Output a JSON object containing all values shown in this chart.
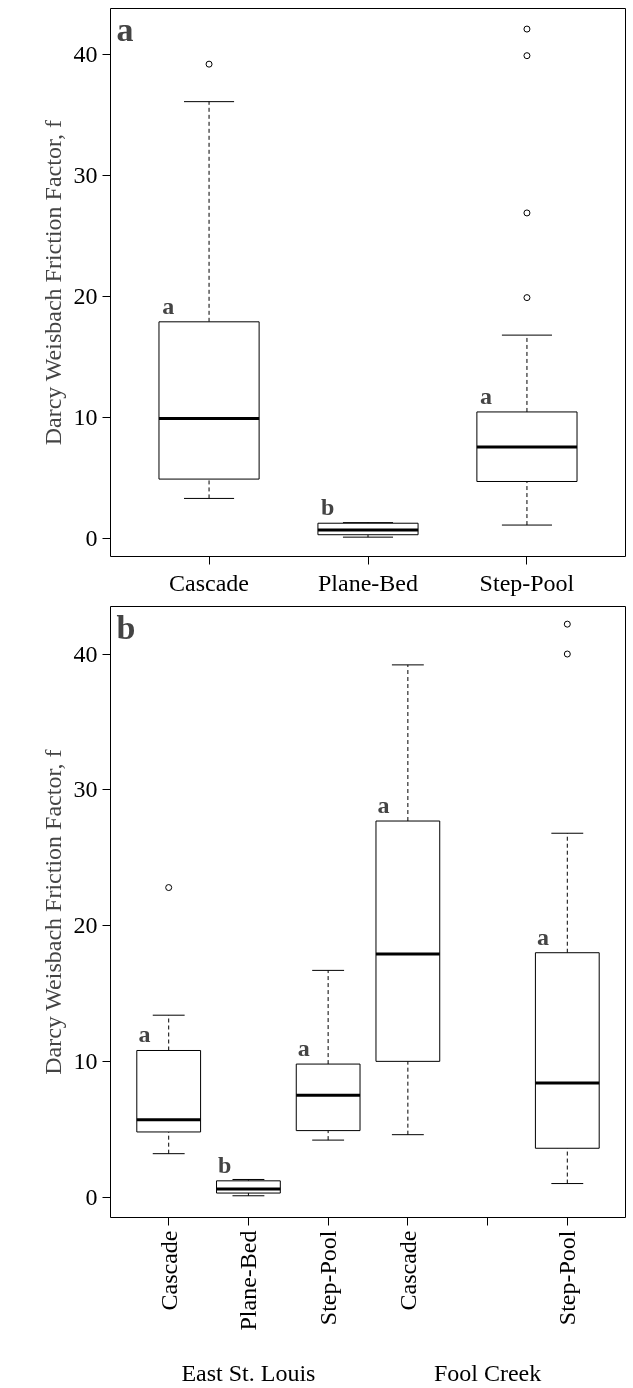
{
  "chart_data": [
    {
      "type": "box",
      "title": "a",
      "ylabel": "Darcy Weisbach Friction Factor, f",
      "categories": [
        "Cascade",
        "Plane-Bed",
        "Step-Pool"
      ],
      "boxes": [
        {
          "low": 3.3,
          "q1": 4.9,
          "median": 9.9,
          "q3": 17.9,
          "high": 36.1,
          "outliers": [
            39.2
          ]
        },
        {
          "low": 0.1,
          "q1": 0.3,
          "median": 0.7,
          "q3": 1.25,
          "high": 1.3
        },
        {
          "low": 1.1,
          "q1": 4.7,
          "median": 7.55,
          "q3": 10.45,
          "high": 16.8,
          "outliers": [
            19.9,
            26.9,
            39.9,
            42.1
          ]
        }
      ],
      "ylim": [
        -1.5,
        43.8
      ],
      "yticks": [
        0,
        10,
        20,
        30,
        40
      ],
      "grid": false,
      "annotations": [
        {
          "text": "a",
          "x": "Cascade",
          "y": 17.9
        },
        {
          "text": "b",
          "x": "Plane-Bed",
          "y": 1.25
        },
        {
          "text": "a",
          "x": "Step-Pool",
          "y": 10.45
        }
      ]
    },
    {
      "type": "box",
      "title": "b",
      "ylabel": "Darcy Weisbach Friction Factor, f",
      "categories": [
        "Cascade",
        "Plane-Bed",
        "Step-Pool",
        "Cascade",
        null,
        "Step-Pool"
      ],
      "boxes": [
        {
          "low": 3.2,
          "q1": 4.8,
          "median": 5.7,
          "q3": 10.8,
          "high": 13.4,
          "outliers": [
            22.8
          ]
        },
        {
          "low": 0.1,
          "q1": 0.3,
          "median": 0.6,
          "q3": 1.2,
          "high": 1.3
        },
        {
          "low": 4.2,
          "q1": 4.9,
          "median": 7.5,
          "q3": 9.8,
          "high": 16.7
        },
        {
          "low": 4.6,
          "q1": 10.0,
          "median": 17.9,
          "q3": 27.7,
          "high": 39.2
        },
        null,
        {
          "low": 1.0,
          "q1": 3.6,
          "median": 8.4,
          "q3": 18.0,
          "high": 26.8,
          "outliers": [
            40.0,
            42.2
          ]
        }
      ],
      "ylim": [
        -1.5,
        43.5
      ],
      "yticks": [
        0,
        10,
        20,
        30,
        40
      ],
      "grid": false,
      "annotations": [
        "a",
        "b",
        "a",
        "a",
        "a",
        "East St. Louis",
        "Fool Creek"
      ]
    }
  ]
}
